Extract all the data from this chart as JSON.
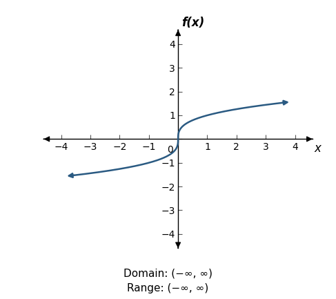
{
  "title": "f(x)",
  "xlabel": "x",
  "xlim": [
    -4.6,
    4.6
  ],
  "ylim": [
    -4.6,
    4.6
  ],
  "xticks": [
    -4,
    -3,
    -2,
    -1,
    0,
    1,
    2,
    3,
    4
  ],
  "yticks": [
    -4,
    -3,
    -2,
    -1,
    0,
    1,
    2,
    3,
    4
  ],
  "curve_color": "#2a5a82",
  "curve_linewidth": 1.8,
  "x_curve_start": -3.65,
  "x_curve_end": 3.65,
  "domain_text": "Domain: (−∞, ∞)",
  "range_text": "Range: (−∞, ∞)",
  "annotation_fontsize": 11,
  "axis_label_fontsize": 12,
  "tick_fontsize": 10,
  "background_color": "#ffffff",
  "arrow_color": "#2a5a82",
  "axis_arrow_color": "#000000",
  "spine_linewidth": 1.0,
  "arrow_mutation_scale": 10
}
